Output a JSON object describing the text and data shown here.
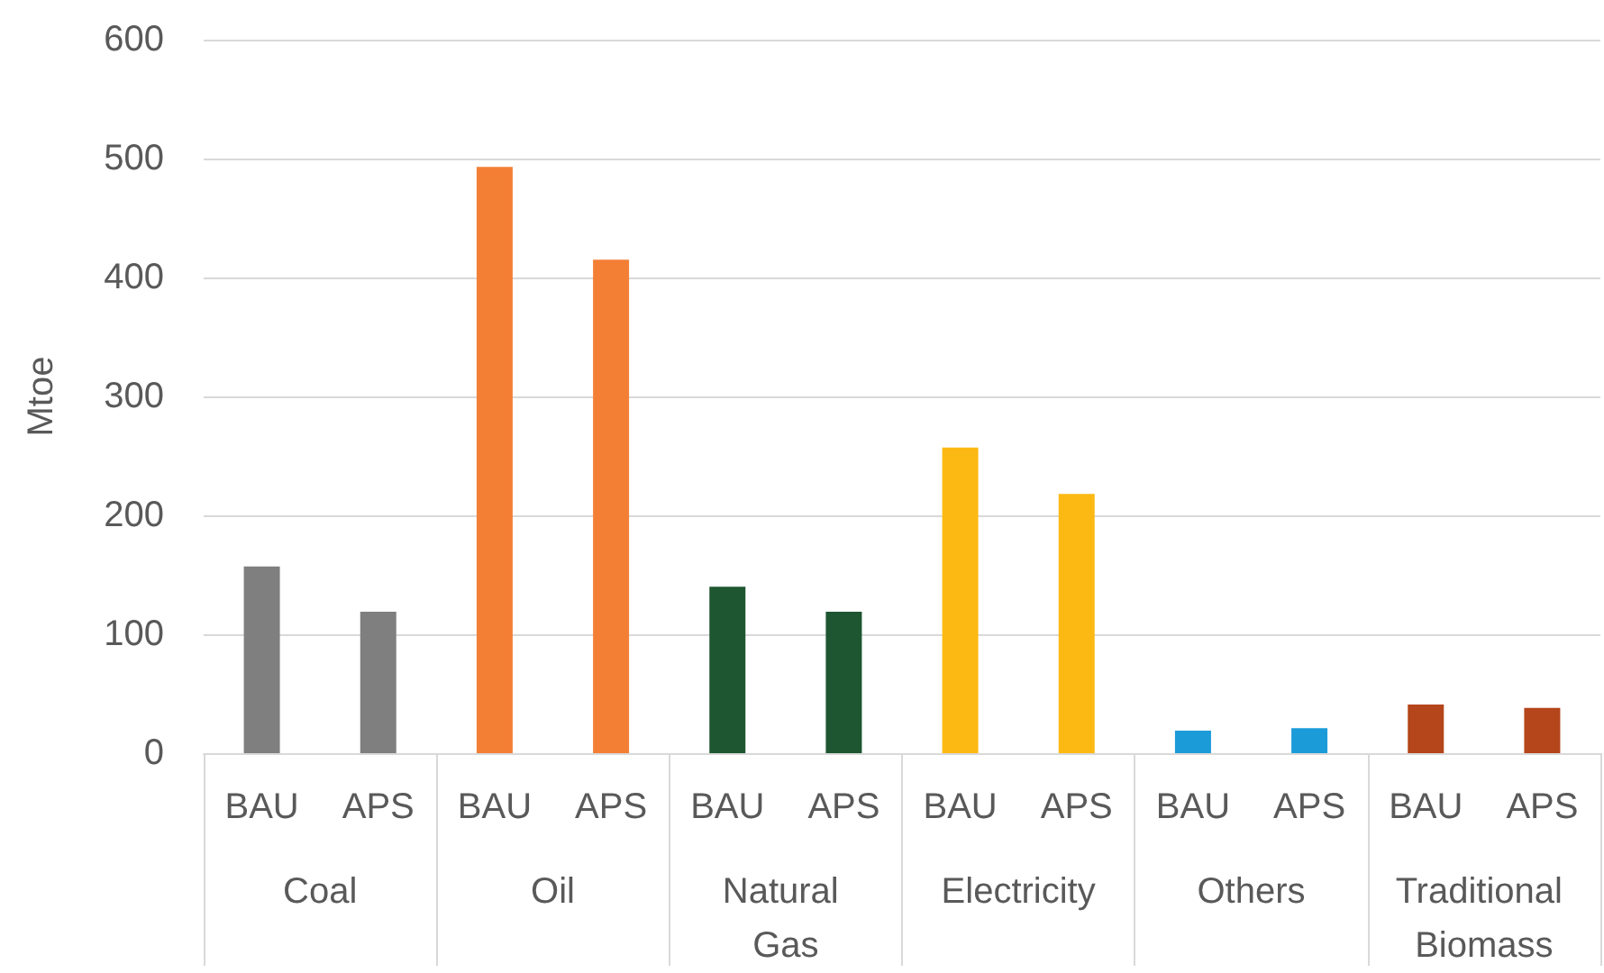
{
  "chart_data": {
    "type": "bar",
    "ylabel": "Mtoe",
    "categories": [
      "BAU",
      "APS",
      "BAU",
      "APS",
      "BAU",
      "APS",
      "BAU",
      "APS",
      "BAU",
      "APS",
      "BAU",
      "APS"
    ],
    "annotations": [
      "Coal",
      "Oil",
      "Natural Gas",
      "Electricity",
      "Others",
      "Traditional Biomass"
    ],
    "values": [
      157,
      119,
      493,
      415,
      140,
      119,
      257,
      218,
      19,
      21,
      41,
      38
    ],
    "colors": [
      "#7f7f7f",
      "#7f7f7f",
      "#f37f35",
      "#f37f35",
      "#1e5631",
      "#1e5631",
      "#fdb913",
      "#fdb913",
      "#1b9bd8",
      "#1b9bd8",
      "#b5451b",
      "#b5451b"
    ],
    "ylim": [
      0,
      600
    ],
    "yticks": [
      0,
      100,
      200,
      300,
      400,
      500,
      600
    ],
    "grid": "y"
  }
}
